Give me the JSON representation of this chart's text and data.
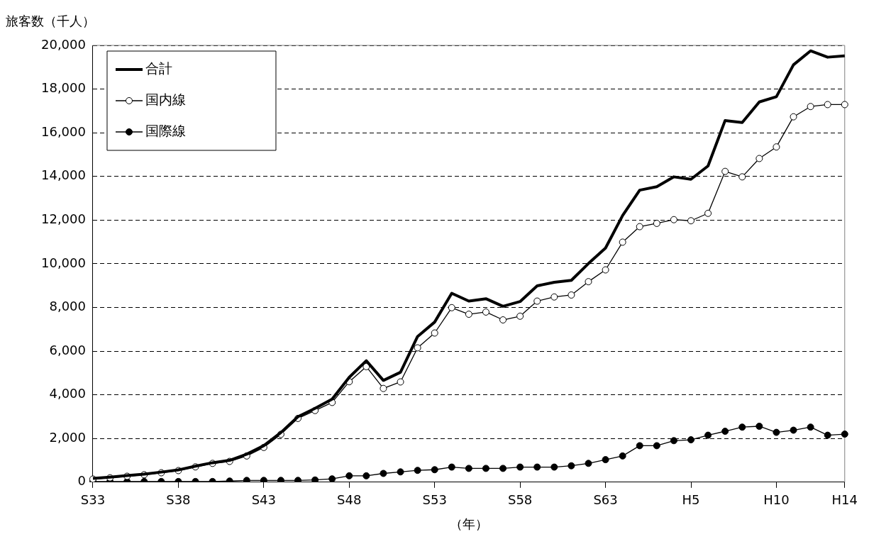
{
  "chart_data": {
    "type": "line",
    "ylabel": "旅客数（千人）",
    "xlabel": "（年）",
    "categories": [
      "S33",
      null,
      null,
      null,
      null,
      "S38",
      null,
      null,
      null,
      null,
      "S43",
      null,
      null,
      null,
      null,
      "S48",
      null,
      null,
      null,
      null,
      "S53",
      null,
      null,
      null,
      null,
      "S58",
      null,
      null,
      null,
      null,
      "S63",
      null,
      null,
      null,
      null,
      "H5",
      null,
      null,
      null,
      null,
      "H10",
      null,
      null,
      null,
      "H14"
    ],
    "series": [
      {
        "name": "合計",
        "color": "#000000",
        "marker": "none",
        "values": [
          170,
          230,
          300,
          370,
          460,
          560,
          730,
          890,
          1000,
          1280,
          1670,
          2270,
          3000,
          3380,
          3800,
          4800,
          5560,
          4660,
          5030,
          6670,
          7330,
          8650,
          8290,
          8400,
          8050,
          8270,
          8990,
          9150,
          9240,
          10010,
          10720,
          12210,
          13370,
          13530,
          13980,
          13870,
          14480,
          16560,
          16470,
          17410,
          17650,
          19110,
          19750,
          19460,
          19520
        ]
      },
      {
        "name": "国内線",
        "color": "#000000",
        "marker": "circle",
        "values": [
          140,
          200,
          270,
          340,
          430,
          530,
          700,
          860,
          950,
          1200,
          1590,
          2190,
          2920,
          3280,
          3650,
          4600,
          5290,
          4290,
          4590,
          6150,
          6830,
          7990,
          7690,
          7790,
          7430,
          7600,
          8290,
          8480,
          8570,
          9180,
          9720,
          10990,
          11700,
          11850,
          12020,
          11970,
          12310,
          14230,
          13980,
          14820,
          15350,
          16730,
          17200,
          17290,
          17290
        ]
      },
      {
        "name": "国際線",
        "color": "#000000",
        "marker": "circle",
        "values": [
          30,
          30,
          30,
          30,
          30,
          30,
          30,
          30,
          50,
          80,
          80,
          80,
          80,
          100,
          150,
          290,
          290,
          400,
          470,
          540,
          570,
          690,
          630,
          630,
          630,
          690,
          690,
          690,
          750,
          860,
          1030,
          1200,
          1670,
          1670,
          1900,
          1940,
          2150,
          2330,
          2520,
          2560,
          2280,
          2380,
          2520,
          2150,
          2200
        ]
      }
    ],
    "ylim": [
      0,
      20000
    ],
    "yticks": [
      {
        "value": 0,
        "label": "0"
      },
      {
        "value": 2000,
        "label": "2,000"
      },
      {
        "value": 4000,
        "label": "4,000"
      },
      {
        "value": 6000,
        "label": "6,000"
      },
      {
        "value": 8000,
        "label": "8,000"
      },
      {
        "value": 10000,
        "label": "10,000"
      },
      {
        "value": 12000,
        "label": "12,000"
      },
      {
        "value": 14000,
        "label": "14,000"
      },
      {
        "value": 16000,
        "label": "16,000"
      },
      {
        "value": 18000,
        "label": "18,000"
      },
      {
        "value": 20000,
        "label": "20,000"
      }
    ],
    "grid": "y",
    "line_style": "solid",
    "legend": "top left"
  }
}
